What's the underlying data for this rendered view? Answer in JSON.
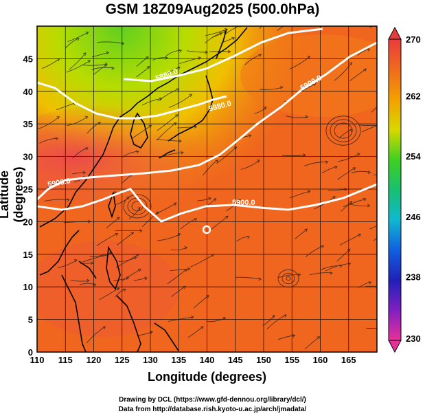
{
  "title": "GSM 18Z09Aug2025 (500.0hPa)",
  "xlabel": "Longitude (degrees)",
  "ylabel": "Latitude  (degrees)",
  "credits": {
    "line1": "Drawing by DCL (https://www.gfd-dennou.org/library/dcl/)",
    "line2": "Data from http://database.rish.kyoto-u.ac.jp/arch/jmadata/"
  },
  "map": {
    "lon_range": [
      110,
      170
    ],
    "lat_range": [
      0,
      50
    ],
    "lon_ticks": [
      "110",
      "115",
      "120",
      "125",
      "130",
      "135",
      "140",
      "145",
      "150",
      "155",
      "160",
      "165"
    ],
    "lat_ticks": [
      "0",
      "5",
      "10",
      "15",
      "20",
      "25",
      "30",
      "35",
      "40",
      "45"
    ],
    "contour_labels": [
      "5900.0",
      "5900.0",
      "5900.0",
      "5880.0",
      "5880.0"
    ]
  },
  "colorbar": {
    "labels": [
      "270",
      "262",
      "254",
      "246",
      "238",
      "230"
    ],
    "min": 230,
    "max": 270,
    "colors": [
      "#e8308a",
      "#c020c0",
      "#2020c0",
      "#1080e0",
      "#10c0c0",
      "#20c040",
      "#80d020",
      "#e0e000",
      "#f0a000",
      "#f06020",
      "#e84040"
    ]
  }
}
